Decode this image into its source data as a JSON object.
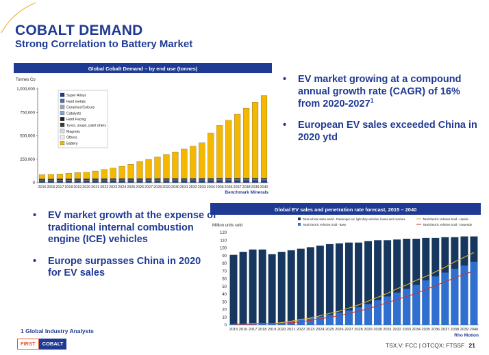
{
  "header": {
    "title": "COBALT DEMAND",
    "subtitle": "Strong Correlation to Battery Market"
  },
  "bullets_right": [
    {
      "text": "EV market growing at a compound annual growth rate (CAGR) of 16% from 2020-2027",
      "sup": "1"
    },
    {
      "text": "European EV sales exceeded China in 2020 ytd",
      "sup": ""
    }
  ],
  "bullets_left": [
    {
      "text": "EV market growth at the expense of traditional internal combustion engine (ICE) vehicles"
    },
    {
      "text": "Europe surpasses China in 2020 for EV sales"
    }
  ],
  "footnote": "1 Global Industry Analysts",
  "logo": {
    "part1": "FIRST",
    "part2": "COBALT"
  },
  "footer": {
    "ticker": "TSX.V: FCC | OTCQX: FTSSF",
    "page": "21"
  },
  "colors": {
    "brand_blue": "#1f3a93",
    "battery": "#f4b800",
    "accent_orange": "#e8a33a"
  },
  "chart_data": [
    {
      "type": "bar",
      "stacked": true,
      "title": "Global Cobalt Demand – by end use (tonnes)",
      "ylabel": "Tonnes Co",
      "source": "Benchmark  Minerals",
      "ylim": [
        0,
        1000000
      ],
      "yticks": [
        "0",
        "250,000",
        "500,000",
        "750,000",
        "1,000,000"
      ],
      "ytick_values": [
        0,
        250000,
        500000,
        750000,
        1000000
      ],
      "legend_position": "top-left",
      "categories": [
        "2015",
        "2016",
        "2017",
        "2018",
        "2019",
        "2020",
        "2021",
        "2022",
        "2023",
        "2024",
        "2025",
        "2026",
        "2027",
        "2028",
        "2029",
        "2030",
        "2031",
        "2032",
        "2033",
        "2034",
        "2035",
        "2036",
        "2037",
        "2038",
        "2039",
        "2040"
      ],
      "totals": [
        85000,
        88000,
        92000,
        100000,
        108000,
        112000,
        125000,
        140000,
        155000,
        175000,
        195000,
        225000,
        248000,
        275000,
        302000,
        328000,
        358000,
        390000,
        425000,
        530000,
        610000,
        665000,
        730000,
        795000,
        860000,
        930000
      ],
      "series": [
        {
          "name": "Super Alloys",
          "color": "#1f3a93",
          "values": [
            14000,
            14000,
            15000,
            15000,
            16000,
            15000,
            16000,
            16000,
            17000,
            17000,
            17000,
            17000,
            18000,
            18000,
            18000,
            18000,
            19000,
            19000,
            19000,
            19000,
            20000,
            20000,
            20000,
            20000,
            21000,
            21000
          ]
        },
        {
          "name": "Hard metals",
          "color": "#4b6fa8",
          "values": [
            6000,
            6000,
            6000,
            6000,
            7000,
            6000,
            7000,
            7000,
            7000,
            7000,
            7000,
            7000,
            7000,
            7000,
            7000,
            7000,
            7000,
            7000,
            8000,
            8000,
            8000,
            8000,
            8000,
            8000,
            8000,
            8000
          ]
        },
        {
          "name": "Ceramics/Colours",
          "color": "#9aa3b0",
          "values": [
            5000,
            5000,
            5000,
            5000,
            5000,
            5000,
            5000,
            5000,
            5000,
            5000,
            5000,
            5000,
            5000,
            5000,
            5000,
            5000,
            5000,
            5000,
            5000,
            5000,
            5000,
            5000,
            5000,
            5000,
            5000,
            5000
          ]
        },
        {
          "name": "Catalysts",
          "color": "#7fa7d9",
          "values": [
            4000,
            4000,
            4000,
            4000,
            4000,
            4000,
            4000,
            4000,
            4000,
            4000,
            4000,
            4000,
            4000,
            4000,
            4000,
            4000,
            4000,
            4000,
            4000,
            4000,
            4000,
            4000,
            4000,
            4000,
            4000,
            4000
          ]
        },
        {
          "name": "Hard Facing",
          "color": "#222222",
          "values": [
            3000,
            3000,
            3000,
            3000,
            3000,
            3000,
            3000,
            3000,
            3000,
            3000,
            3000,
            3000,
            3000,
            3000,
            3000,
            3000,
            3000,
            3000,
            3000,
            3000,
            3000,
            3000,
            3000,
            3000,
            3000,
            3000
          ]
        },
        {
          "name": "Tyres, soaps, paint driers",
          "color": "#3a3a3a",
          "values": [
            4000,
            4000,
            4000,
            4000,
            4000,
            4000,
            4000,
            4000,
            4000,
            4000,
            4000,
            4000,
            4000,
            4000,
            4000,
            4000,
            4000,
            4000,
            4000,
            4000,
            4000,
            4000,
            4000,
            4000,
            4000,
            4000
          ]
        },
        {
          "name": "Magnets",
          "color": "#d9d9d9",
          "values": [
            2000,
            2000,
            2000,
            2000,
            2000,
            2000,
            2000,
            2000,
            2000,
            2000,
            2000,
            2000,
            2000,
            2000,
            2000,
            2000,
            2000,
            2000,
            2000,
            2000,
            2000,
            2000,
            2000,
            2000,
            2000,
            2000
          ]
        },
        {
          "name": "Others",
          "color": "#eeeeee",
          "values": [
            3000,
            3000,
            3000,
            3000,
            3000,
            3000,
            3000,
            3000,
            3000,
            3000,
            3000,
            3000,
            3000,
            3000,
            3000,
            3000,
            3000,
            3000,
            3000,
            3000,
            3000,
            3000,
            3000,
            3000,
            3000,
            3000
          ]
        },
        {
          "name": "Battery",
          "color": "#f4b800",
          "values": [
            44000,
            47000,
            50000,
            58000,
            64000,
            69000,
            80000,
            96000,
            110000,
            130000,
            150000,
            180000,
            202000,
            229000,
            256000,
            282000,
            311000,
            343000,
            377000,
            482000,
            561000,
            616000,
            681000,
            746000,
            810000,
            880000
          ]
        }
      ]
    },
    {
      "type": "bar",
      "title": "Global EV sales and penetration rate forecast, 2015 – 2040",
      "ylabel": "Million units sold",
      "source": "Rho Motion",
      "ylim": [
        0,
        120
      ],
      "yticks": [
        "0",
        "10",
        "20",
        "30",
        "40",
        "50",
        "60",
        "70",
        "80",
        "90",
        "100",
        "110",
        "120"
      ],
      "ytick_values": [
        0,
        10,
        20,
        30,
        40,
        50,
        60,
        70,
        80,
        90,
        100,
        110,
        120
      ],
      "legend_position": "top",
      "categories": [
        "2015",
        "2016",
        "2017",
        "2018",
        "2019",
        "2020",
        "2021",
        "2022",
        "2023",
        "2024",
        "2025",
        "2026",
        "2027",
        "2028",
        "2029",
        "2030",
        "2031",
        "2032",
        "2033",
        "2034",
        "2035",
        "2036",
        "2037",
        "2038",
        "2039",
        "2040"
      ],
      "series": [
        {
          "name": "Total vehicle sales world - Passenger car, light duty vehicles, buses and coaches",
          "color": "#17375e",
          "values": [
            91,
            95,
            98,
            98,
            92,
            95,
            97,
            99,
            101,
            103,
            105,
            106,
            107,
            107,
            109,
            110,
            110,
            111,
            112,
            112,
            113,
            113,
            114,
            114,
            115,
            115
          ]
        },
        {
          "name": "Total Electric Vehicles Sold - Base",
          "color": "#2f6fd0",
          "values": [
            1,
            1,
            2,
            2,
            2,
            3,
            5,
            7,
            9,
            11,
            13,
            16,
            19,
            23,
            27,
            32,
            37,
            42,
            47,
            52,
            58,
            63,
            68,
            73,
            77,
            82
          ]
        },
        {
          "name": "Total Electric Vehicles Sold - Upside",
          "color": "#e8b830",
          "type": "line",
          "values": [
            1,
            1,
            2,
            2,
            2,
            3,
            5,
            7,
            9,
            12,
            15,
            18,
            22,
            26,
            31,
            36,
            41,
            47,
            52,
            58,
            63,
            69,
            75,
            82,
            88,
            94
          ]
        },
        {
          "name": "Total Electric Vehicles Sold - Downside",
          "color": "#c0392b",
          "type": "line",
          "values": [
            1,
            1,
            1,
            2,
            2,
            2,
            3,
            4,
            6,
            8,
            10,
            12,
            15,
            18,
            21,
            25,
            29,
            33,
            37,
            41,
            46,
            51,
            56,
            61,
            66,
            70
          ]
        }
      ]
    }
  ]
}
